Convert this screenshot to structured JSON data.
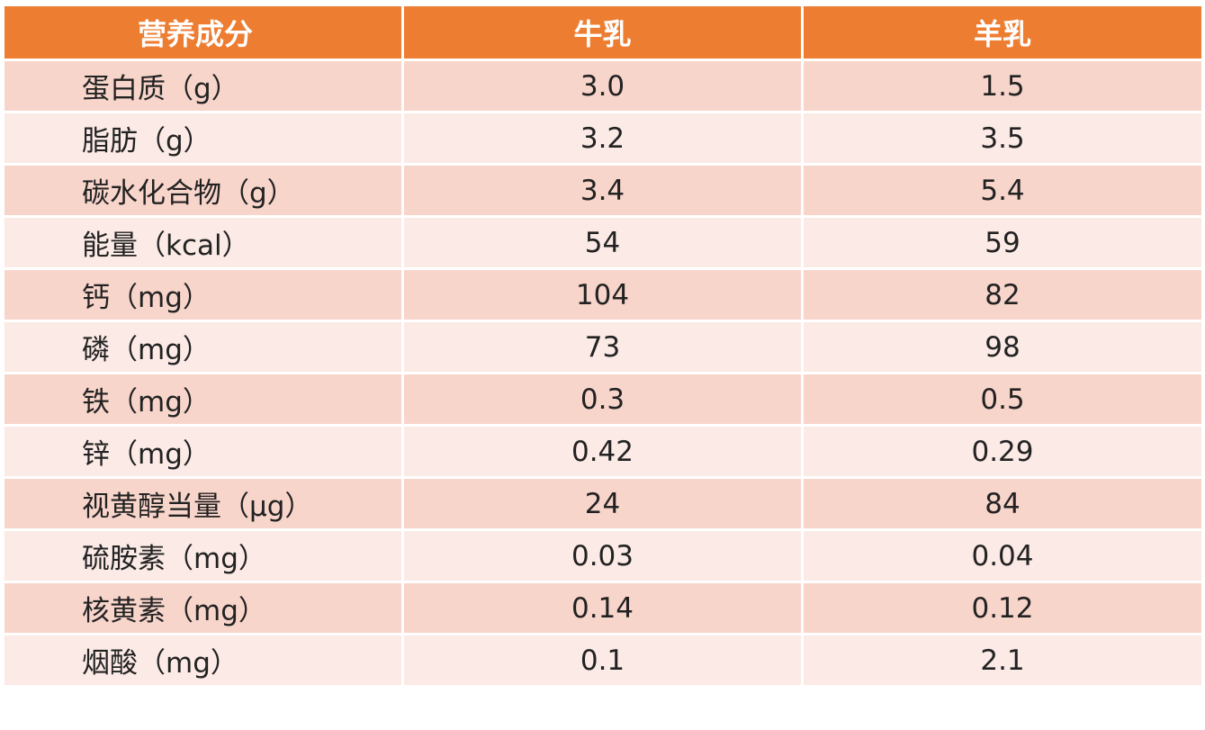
{
  "table": {
    "headers": [
      "营养成分",
      "牛乳",
      "羊乳"
    ],
    "rows": [
      [
        "蛋白质（g）",
        "3.0",
        "1.5"
      ],
      [
        "脂肪（g）",
        "3.2",
        "3.5"
      ],
      [
        "碳水化合物（g）",
        "3.4",
        "5.4"
      ],
      [
        "能量（kcal）",
        "54",
        "59"
      ],
      [
        "钙（mg）",
        "104",
        "82"
      ],
      [
        "磷（mg）",
        "73",
        "98"
      ],
      [
        "铁（mg）",
        "0.3",
        "0.5"
      ],
      [
        "锌（mg）",
        "0.42",
        "0.29"
      ],
      [
        "视黄醇当量（μg）",
        "24",
        "84"
      ],
      [
        "硫胺素（mg）",
        "0.03",
        "0.04"
      ],
      [
        "核黄素（mg）",
        "0.14",
        "0.12"
      ],
      [
        "烟酸（mg）",
        "0.1",
        "2.1"
      ]
    ]
  },
  "colors": {
    "header_bg": "#ED7D31",
    "row_odd_bg": "#F8D5CB",
    "row_even_bg": "#FBEAE5"
  }
}
